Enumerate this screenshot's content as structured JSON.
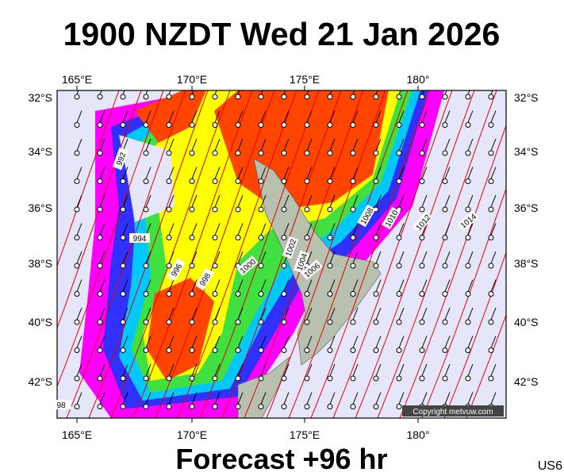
{
  "header": {
    "title": "1900 NZDT Wed 21 Jan 2026"
  },
  "map": {
    "lon_labels": [
      "165°E",
      "170°E",
      "175°E",
      "180°"
    ],
    "lat_labels": [
      "32°S",
      "34°S",
      "36°S",
      "38°S",
      "40°S",
      "42°S"
    ],
    "isobar_labels": [
      "992",
      "994",
      "996",
      "998",
      "1000",
      "1002",
      "1004",
      "1006",
      "1008",
      "1010",
      "1012",
      "1014",
      "98"
    ],
    "copyright": "Copyright metvuw.com"
  },
  "footer": {
    "forecast": "Forecast +96 hr",
    "code": "US6"
  }
}
